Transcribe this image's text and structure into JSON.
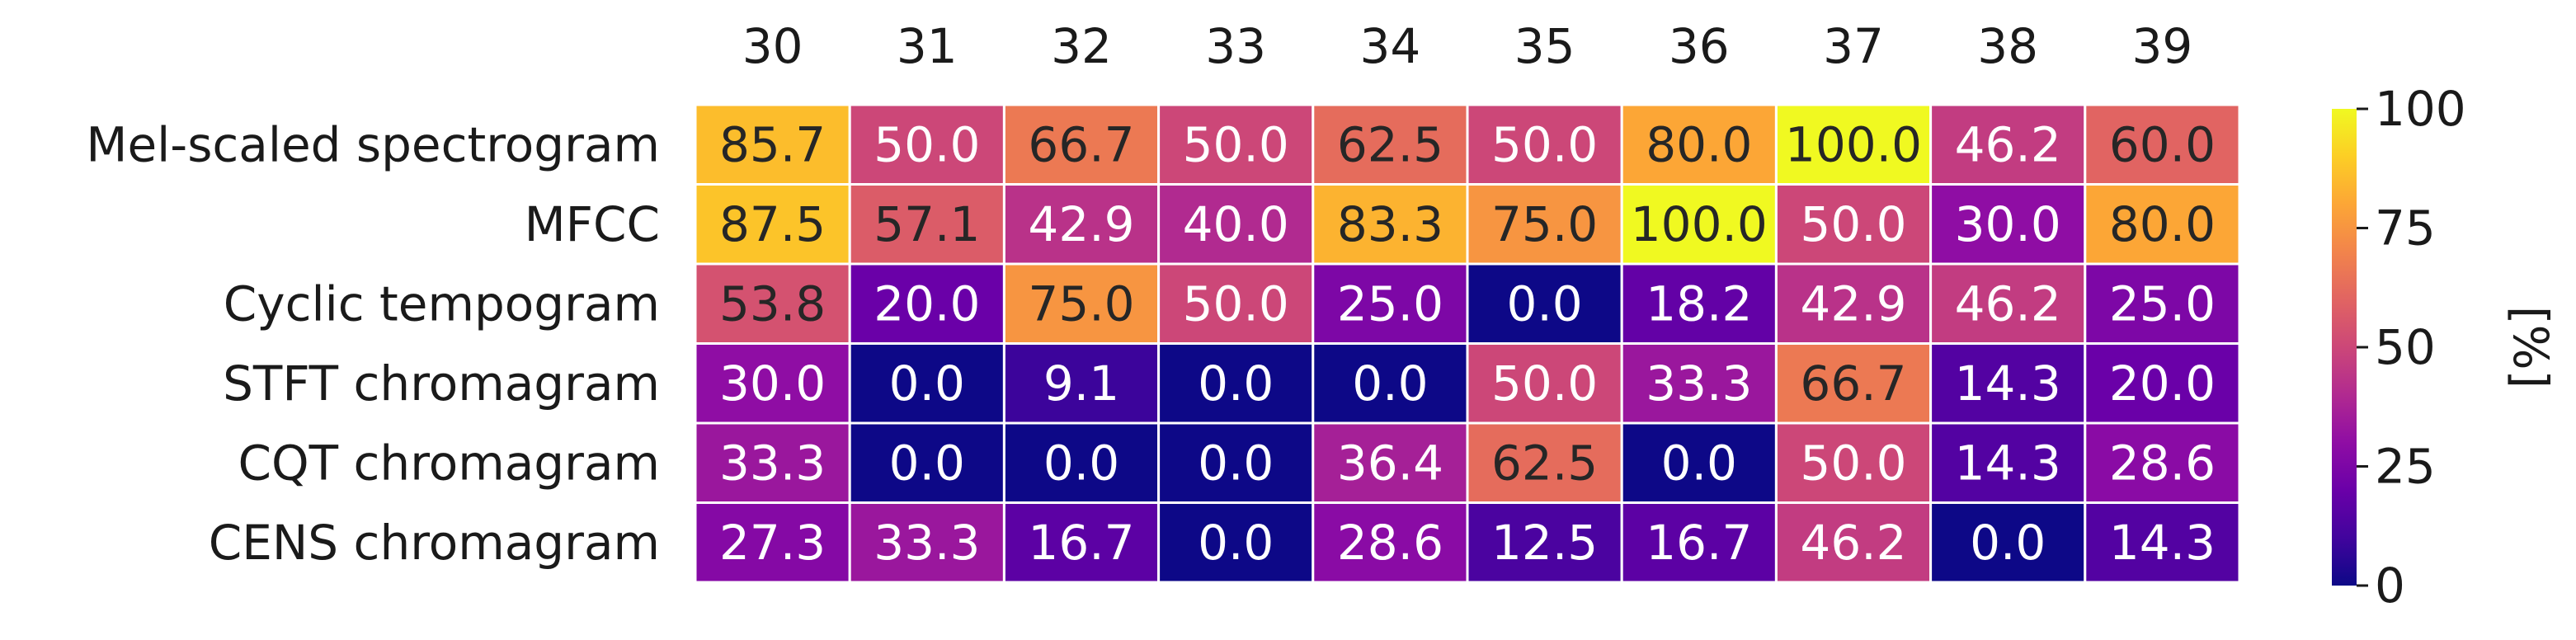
{
  "chart_data": {
    "type": "heatmap",
    "title": "",
    "xlabel": "",
    "ylabel": "",
    "columns": [
      "30",
      "31",
      "32",
      "33",
      "34",
      "35",
      "36",
      "37",
      "38",
      "39"
    ],
    "rows": [
      "Mel-scaled spectrogram",
      "MFCC",
      "Cyclic tempogram",
      "STFT chromagram",
      "CQT chromagram",
      "CENS chromagram"
    ],
    "values": [
      [
        85.7,
        50.0,
        66.7,
        50.0,
        62.5,
        50.0,
        80.0,
        100.0,
        46.2,
        60.0
      ],
      [
        87.5,
        57.1,
        42.9,
        40.0,
        83.3,
        75.0,
        100.0,
        50.0,
        30.0,
        80.0
      ],
      [
        53.8,
        20.0,
        75.0,
        50.0,
        25.0,
        0.0,
        18.2,
        42.9,
        46.2,
        25.0
      ],
      [
        30.0,
        0.0,
        9.1,
        0.0,
        0.0,
        50.0,
        33.3,
        66.7,
        14.3,
        20.0
      ],
      [
        33.3,
        0.0,
        0.0,
        0.0,
        36.4,
        62.5,
        0.0,
        50.0,
        14.3,
        28.6
      ],
      [
        27.3,
        33.3,
        16.7,
        0.0,
        28.6,
        12.5,
        16.7,
        46.2,
        0.0,
        14.3
      ]
    ],
    "value_format": "0.0",
    "colormap": "plasma",
    "color_range": [
      0,
      100
    ],
    "colorbar": {
      "label": "[%]",
      "ticks": [
        0,
        25,
        50,
        75,
        100
      ]
    },
    "grid_line_color": "#ffffff",
    "text_color_dark": "#262626",
    "text_color_light": "#ffffff"
  }
}
